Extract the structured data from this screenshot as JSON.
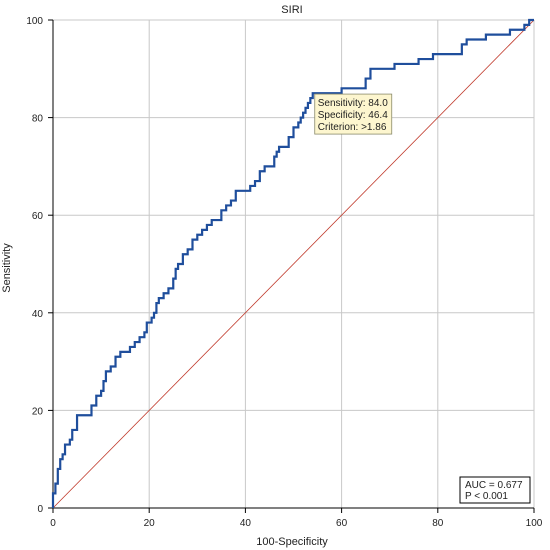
{
  "chart_data": {
    "type": "line",
    "title": "SIRI",
    "xlabel": "100-Specificity",
    "ylabel": "Sensitivity",
    "xlim": [
      0,
      100
    ],
    "ylim": [
      0,
      100
    ],
    "xticks": [
      0,
      20,
      40,
      60,
      80,
      100
    ],
    "yticks": [
      0,
      20,
      40,
      60,
      80,
      100
    ],
    "grid": true,
    "series": [
      {
        "role": "roc-curve",
        "color": "#1f4e9c",
        "points": [
          [
            0,
            0
          ],
          [
            0,
            3
          ],
          [
            0.5,
            3
          ],
          [
            0.5,
            5
          ],
          [
            1,
            5
          ],
          [
            1,
            8
          ],
          [
            1.5,
            8
          ],
          [
            1.5,
            10
          ],
          [
            2,
            10
          ],
          [
            2,
            11
          ],
          [
            2.5,
            11
          ],
          [
            2.5,
            13
          ],
          [
            3.5,
            13
          ],
          [
            3.5,
            14
          ],
          [
            4,
            14
          ],
          [
            4,
            16
          ],
          [
            5,
            16
          ],
          [
            5,
            19
          ],
          [
            8,
            19
          ],
          [
            8,
            21
          ],
          [
            9,
            21
          ],
          [
            9,
            23
          ],
          [
            10,
            23
          ],
          [
            10,
            24
          ],
          [
            10.5,
            24
          ],
          [
            10.5,
            26
          ],
          [
            11,
            26
          ],
          [
            11,
            28
          ],
          [
            12,
            28
          ],
          [
            12,
            29
          ],
          [
            13,
            29
          ],
          [
            13,
            31
          ],
          [
            14,
            31
          ],
          [
            14,
            32
          ],
          [
            16,
            32
          ],
          [
            16,
            33
          ],
          [
            17,
            33
          ],
          [
            17,
            34
          ],
          [
            18,
            34
          ],
          [
            18,
            35
          ],
          [
            19,
            35
          ],
          [
            19,
            36
          ],
          [
            19.5,
            36
          ],
          [
            19.5,
            38
          ],
          [
            20.5,
            38
          ],
          [
            20.5,
            39
          ],
          [
            21,
            39
          ],
          [
            21,
            40
          ],
          [
            21.5,
            40
          ],
          [
            21.5,
            42
          ],
          [
            22,
            42
          ],
          [
            22,
            43
          ],
          [
            23,
            43
          ],
          [
            23,
            44
          ],
          [
            24,
            44
          ],
          [
            24,
            45
          ],
          [
            25,
            45
          ],
          [
            25,
            47
          ],
          [
            25.5,
            47
          ],
          [
            25.5,
            49
          ],
          [
            26,
            49
          ],
          [
            26,
            50
          ],
          [
            27,
            50
          ],
          [
            27,
            52
          ],
          [
            28,
            52
          ],
          [
            28,
            53
          ],
          [
            29,
            53
          ],
          [
            29,
            55
          ],
          [
            30,
            55
          ],
          [
            30,
            56
          ],
          [
            31,
            56
          ],
          [
            31,
            57
          ],
          [
            32,
            57
          ],
          [
            32,
            58
          ],
          [
            33,
            58
          ],
          [
            33,
            59
          ],
          [
            35,
            59
          ],
          [
            35,
            61
          ],
          [
            36,
            61
          ],
          [
            36,
            62
          ],
          [
            37,
            62
          ],
          [
            37,
            63
          ],
          [
            38,
            63
          ],
          [
            38,
            65
          ],
          [
            41,
            65
          ],
          [
            41,
            66
          ],
          [
            42,
            66
          ],
          [
            42,
            67
          ],
          [
            43,
            67
          ],
          [
            43,
            69
          ],
          [
            44,
            69
          ],
          [
            44,
            70
          ],
          [
            46,
            70
          ],
          [
            46,
            72
          ],
          [
            46.5,
            72
          ],
          [
            46.5,
            73
          ],
          [
            47,
            73
          ],
          [
            47,
            74
          ],
          [
            49,
            74
          ],
          [
            49,
            76
          ],
          [
            50,
            76
          ],
          [
            50,
            78
          ],
          [
            51,
            78
          ],
          [
            51,
            79
          ],
          [
            51.5,
            79
          ],
          [
            51.5,
            80
          ],
          [
            52,
            80
          ],
          [
            52,
            81
          ],
          [
            52.5,
            81
          ],
          [
            52.5,
            82
          ],
          [
            53,
            82
          ],
          [
            53,
            83
          ],
          [
            53.5,
            83
          ],
          [
            53.5,
            84
          ],
          [
            54,
            84
          ],
          [
            54,
            85
          ],
          [
            60,
            85
          ],
          [
            60,
            86
          ],
          [
            65,
            86
          ],
          [
            65,
            88
          ],
          [
            66,
            88
          ],
          [
            66,
            90
          ],
          [
            71,
            90
          ],
          [
            71,
            91
          ],
          [
            76,
            91
          ],
          [
            76,
            92
          ],
          [
            79,
            92
          ],
          [
            79,
            93
          ],
          [
            85,
            93
          ],
          [
            85,
            95
          ],
          [
            86,
            95
          ],
          [
            86,
            96
          ],
          [
            90,
            96
          ],
          [
            90,
            97
          ],
          [
            95,
            97
          ],
          [
            95,
            98
          ],
          [
            98,
            98
          ],
          [
            98,
            99
          ],
          [
            99,
            99
          ],
          [
            99,
            100
          ],
          [
            100,
            100
          ]
        ]
      },
      {
        "role": "reference-diagonal",
        "color": "#c0392b",
        "points": [
          [
            0,
            0
          ],
          [
            100,
            100
          ]
        ]
      }
    ],
    "annotation": {
      "x": 54,
      "y": 84,
      "lines": [
        "Sensitivity: 84.0",
        "Specificity: 46.4",
        "Criterion: >1.86"
      ]
    },
    "stats_box": {
      "placement": "bottom-right",
      "lines": [
        "AUC = 0.677",
        "P < 0.001"
      ]
    }
  }
}
